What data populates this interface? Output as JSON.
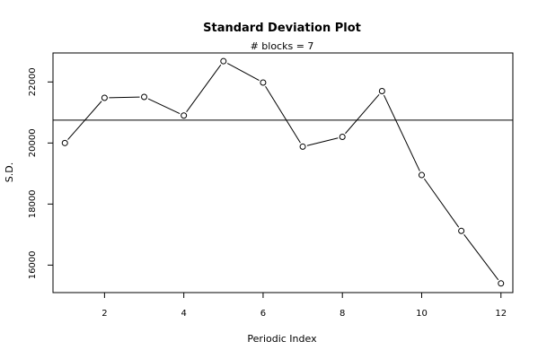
{
  "chart_data": {
    "type": "line",
    "title": "Standard Deviation Plot",
    "subtitle": "# blocks =  7",
    "xlabel": "Periodic Index",
    "ylabel": "S.D.",
    "xlim": [
      0.7,
      12.3
    ],
    "ylim": [
      15100,
      22950
    ],
    "x_ticks": [
      2,
      4,
      6,
      8,
      10,
      12
    ],
    "y_ticks": [
      16000,
      18000,
      20000,
      22000
    ],
    "reference_line": 20750,
    "series": [
      {
        "x": [
          1,
          2,
          3,
          4,
          5,
          6,
          7,
          8,
          9,
          10,
          11,
          12
        ],
        "values": [
          20000,
          21480,
          21510,
          20900,
          22680,
          21980,
          19880,
          20200,
          21700,
          18950,
          17120,
          15400
        ]
      }
    ],
    "colors": {
      "line": "#000000",
      "marker": "#000000",
      "background": "#ffffff"
    },
    "grid": false,
    "legend": "none"
  }
}
